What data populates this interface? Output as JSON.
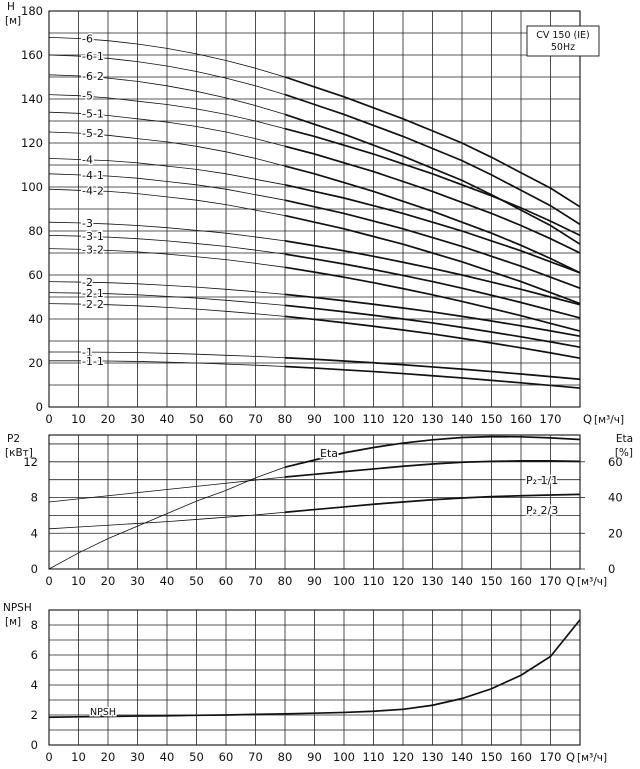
{
  "chart_data": [
    {
      "type": "line",
      "name": "head",
      "ylabel": "H",
      "yunit": "[м]",
      "xlabel": "Q",
      "xunit": "[м³/ч]",
      "xlim": [
        0,
        180
      ],
      "ylim": [
        0,
        180
      ],
      "x_ticks": [
        0,
        10,
        20,
        30,
        40,
        50,
        60,
        70,
        80,
        90,
        100,
        110,
        120,
        130,
        140,
        150,
        160,
        170
      ],
      "y_ticks": [
        0,
        20,
        40,
        60,
        80,
        100,
        120,
        140,
        160,
        180
      ],
      "legend_box": {
        "line1": "CV 150 (IE)",
        "line2": "50Hz"
      },
      "x": [
        0,
        10,
        20,
        30,
        40,
        50,
        60,
        70,
        80,
        90,
        100,
        110,
        120,
        130,
        140,
        150,
        160,
        170,
        180
      ],
      "series": [
        {
          "name": "-6",
          "values": [
            168,
            167.5,
            166.5,
            165,
            163,
            160.5,
            157.5,
            154,
            150,
            145.5,
            141,
            136,
            131,
            125.5,
            120,
            113.5,
            106.5,
            99.5,
            91
          ]
        },
        {
          "name": "-6-1",
          "values": [
            160,
            159.5,
            158.5,
            157,
            155,
            152.5,
            149.5,
            146,
            142,
            137.5,
            133,
            128,
            123,
            117.5,
            112,
            105.5,
            98.5,
            91.5,
            83
          ]
        },
        {
          "name": "-6-2",
          "values": [
            151,
            150.5,
            149.5,
            148,
            146,
            143.5,
            140.5,
            137,
            133,
            128.5,
            124,
            119,
            114,
            108.5,
            103,
            96.5,
            89.5,
            82.5,
            74
          ]
        },
        {
          "name": "-5",
          "values": [
            142,
            141.5,
            140.5,
            139,
            137.5,
            135.5,
            133,
            130,
            126.5,
            123,
            119,
            115,
            110.5,
            106,
            101,
            96,
            90.5,
            84.5,
            78
          ]
        },
        {
          "name": "-5-1",
          "values": [
            134,
            133.5,
            132.5,
            131,
            129.5,
            127.5,
            125,
            122,
            118.5,
            115,
            111,
            107,
            102.5,
            98,
            93,
            88,
            82.5,
            76.5,
            70
          ]
        },
        {
          "name": "-5-2",
          "values": [
            125,
            124.5,
            123.5,
            122,
            120.5,
            118.5,
            116,
            113,
            109.5,
            106,
            102,
            98,
            93.5,
            89,
            84,
            79,
            73.5,
            67.5,
            61
          ]
        },
        {
          "name": "-4",
          "values": [
            113,
            112.5,
            112,
            111,
            109.5,
            108,
            106,
            103.5,
            101,
            98,
            95,
            91.5,
            88,
            84,
            80,
            75.5,
            71,
            66,
            61
          ]
        },
        {
          "name": "-4-1",
          "values": [
            106,
            105.5,
            105,
            104,
            102.5,
            101,
            99,
            96.5,
            94,
            91,
            88,
            84.5,
            81,
            77,
            73,
            68.5,
            64,
            59,
            54
          ]
        },
        {
          "name": "-4-2",
          "values": [
            99,
            98.5,
            98,
            97,
            95.5,
            94,
            92,
            89.5,
            87,
            84,
            81,
            77.5,
            74,
            70,
            66,
            61.5,
            57,
            52,
            47
          ]
        },
        {
          "name": "-3",
          "values": [
            84,
            83.7,
            83.2,
            82.5,
            81.5,
            80.3,
            79,
            77.3,
            75.5,
            73.3,
            71,
            68.5,
            65.8,
            63,
            60,
            56.8,
            53.5,
            50,
            46.5
          ]
        },
        {
          "name": "-3-1",
          "values": [
            78,
            77.7,
            77.2,
            76.5,
            75.5,
            74.3,
            73,
            71.3,
            69.5,
            67.3,
            65,
            62.5,
            59.8,
            57,
            54,
            50.8,
            47.5,
            44,
            40.5
          ]
        },
        {
          "name": "-3-2",
          "values": [
            72,
            71.7,
            71.2,
            70.5,
            69.5,
            68.3,
            67,
            65.3,
            63.5,
            61.3,
            59,
            56.5,
            53.8,
            51,
            48,
            44.8,
            41.5,
            38,
            34.5
          ]
        },
        {
          "name": "-2",
          "values": [
            57,
            56.8,
            56.5,
            56,
            55.3,
            54.5,
            53.5,
            52.4,
            51.2,
            49.8,
            48.3,
            46.7,
            45,
            43.2,
            41.2,
            39.1,
            36.9,
            34.6,
            32.2
          ]
        },
        {
          "name": "-2-1",
          "values": [
            52,
            51.8,
            51.5,
            51,
            50.3,
            49.5,
            48.5,
            47.4,
            46.2,
            44.8,
            43.3,
            41.7,
            40,
            38.2,
            36.2,
            34.1,
            31.9,
            29.6,
            27.2
          ]
        },
        {
          "name": "-2-2",
          "values": [
            47,
            46.8,
            46.5,
            46,
            45.3,
            44.5,
            43.5,
            42.4,
            41.2,
            39.8,
            38.3,
            36.7,
            35,
            33.2,
            31.2,
            29.1,
            26.9,
            24.6,
            22.2
          ]
        },
        {
          "name": "-1",
          "values": [
            25,
            25,
            24.9,
            24.7,
            24.4,
            24,
            23.5,
            23,
            22.4,
            21.7,
            20.9,
            20.1,
            19.2,
            18.2,
            17.2,
            16.1,
            15,
            13.8,
            12.6
          ]
        },
        {
          "name": "-1-1",
          "values": [
            21,
            21,
            20.9,
            20.7,
            20.4,
            20,
            19.5,
            19,
            18.4,
            17.7,
            16.9,
            16.1,
            15.2,
            14.2,
            13.2,
            12.1,
            11,
            9.8,
            8.6
          ]
        }
      ]
    },
    {
      "type": "line",
      "name": "power_efficiency",
      "ylabel_left": "P2",
      "yunit_left": "[кВт]",
      "ylabel_right": "Eta",
      "yunit_right": "[%]",
      "xlabel": "Q",
      "xunit": "[м³/ч]",
      "xlim": [
        0,
        180
      ],
      "ylim_left": [
        0,
        15
      ],
      "ylim_right": [
        0,
        75
      ],
      "x_ticks": [
        0,
        10,
        20,
        30,
        40,
        50,
        60,
        70,
        80,
        90,
        100,
        110,
        120,
        130,
        140,
        150,
        160,
        170
      ],
      "y_ticks_left": [
        0,
        4,
        8,
        12
      ],
      "y_ticks_right": [
        0,
        20,
        40,
        60
      ],
      "x": [
        0,
        10,
        20,
        30,
        40,
        50,
        60,
        70,
        80,
        90,
        100,
        110,
        120,
        130,
        140,
        150,
        160,
        170,
        180
      ],
      "series": [
        {
          "name": "Eta",
          "label": "Eta",
          "axis": "right",
          "values": [
            0,
            9,
            17,
            24,
            31,
            38,
            44,
            51,
            57,
            61,
            65,
            68,
            70.5,
            72.3,
            73.6,
            74.1,
            74,
            73.4,
            72.5
          ]
        },
        {
          "name": "P2 1/1",
          "label": "P₂ 1/1",
          "axis": "left",
          "values": [
            7.5,
            7.85,
            8.2,
            8.55,
            8.9,
            9.25,
            9.6,
            9.95,
            10.3,
            10.6,
            10.9,
            11.2,
            11.5,
            11.75,
            11.95,
            12.05,
            12.1,
            12.1,
            12.05
          ]
        },
        {
          "name": "P2 2/3",
          "label": "P₂ 2/3",
          "axis": "left",
          "values": [
            4.5,
            4.7,
            4.9,
            5.1,
            5.3,
            5.55,
            5.8,
            6.05,
            6.35,
            6.65,
            6.95,
            7.25,
            7.5,
            7.75,
            7.95,
            8.1,
            8.2,
            8.28,
            8.35
          ]
        }
      ]
    },
    {
      "type": "line",
      "name": "npsh",
      "ylabel": "NPSH",
      "yunit": "[м]",
      "xlabel": "Q",
      "xunit": "[м³/ч]",
      "xlim": [
        0,
        180
      ],
      "ylim": [
        0,
        9
      ],
      "x_ticks": [
        0,
        10,
        20,
        30,
        40,
        50,
        60,
        70,
        80,
        90,
        100,
        110,
        120,
        130,
        140,
        150,
        160,
        170
      ],
      "y_ticks": [
        0,
        2,
        4,
        6,
        8
      ],
      "x": [
        0,
        10,
        20,
        30,
        40,
        50,
        60,
        70,
        80,
        90,
        100,
        110,
        120,
        130,
        140,
        150,
        160,
        170,
        180
      ],
      "series": [
        {
          "name": "NPSH",
          "label": "NPSH",
          "values": [
            1.85,
            1.88,
            1.9,
            1.93,
            1.95,
            1.98,
            2.0,
            2.04,
            2.08,
            2.12,
            2.17,
            2.25,
            2.38,
            2.65,
            3.1,
            3.75,
            4.65,
            5.9,
            8.35
          ]
        }
      ]
    }
  ]
}
